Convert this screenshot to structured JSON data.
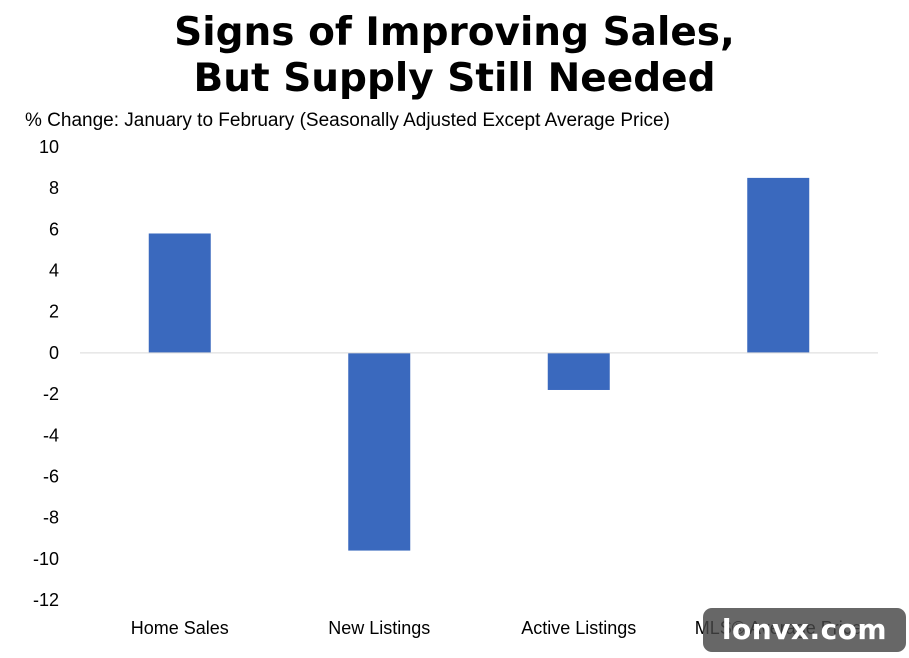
{
  "title_lines": [
    "Signs of Improving Sales,",
    "But Supply Still Needed"
  ],
  "subtitle": "% Change:  January  to  February  (Seasonally Adjusted Except Average Price)",
  "watermark": "lonvx.com",
  "colors": {
    "bar": "#3a69be",
    "zero_line": "#d9d9d9",
    "text": "#000000",
    "background": "#ffffff"
  },
  "chart_data": {
    "type": "bar",
    "title": "Signs of Improving Sales, But Supply Still Needed",
    "subtitle": "% Change:  January  to  February  (Seasonally Adjusted Except Average Price)",
    "categories": [
      "Home Sales",
      "New Listings",
      "Active Listings",
      "MLS® Average Price"
    ],
    "values": [
      5.8,
      -9.6,
      -1.8,
      8.5
    ],
    "ylim": [
      -12,
      10
    ],
    "yticks": [
      10,
      8,
      6,
      4,
      2,
      0,
      -2,
      -4,
      -6,
      -8,
      -10,
      -12
    ],
    "xlabel": "",
    "ylabel": "",
    "grid": false,
    "legend": "none"
  }
}
